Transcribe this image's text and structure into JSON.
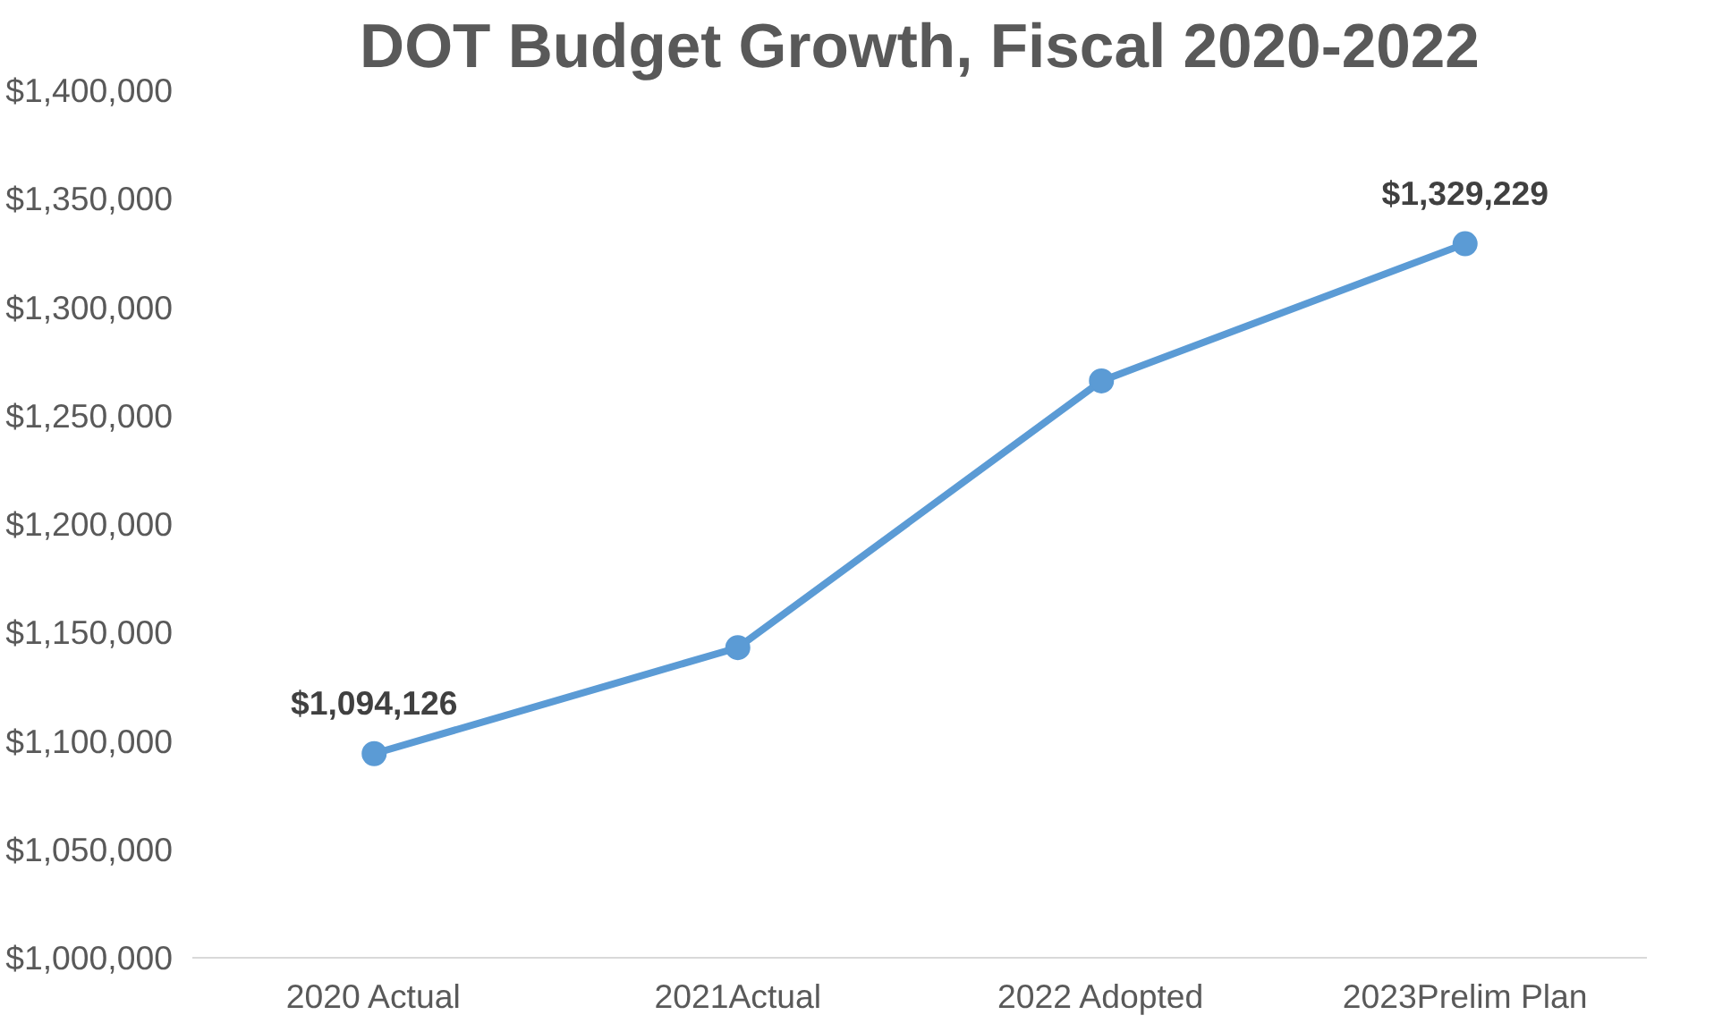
{
  "chart_data": {
    "type": "line",
    "title": "DOT Budget Growth, Fiscal 2020-2022",
    "categories": [
      "2020 Actual",
      "2021Actual",
      "2022 Adopted",
      "2023Prelim Plan"
    ],
    "series": [
      {
        "color": "#5b9bd5",
        "values": [
          1094126,
          1143000,
          1266000,
          1329229
        ],
        "value_labels": [
          "$1,094,126",
          null,
          null,
          "$1,329,229"
        ]
      }
    ],
    "ylim": [
      1000000,
      1400000
    ],
    "yticks": [
      {
        "value": 1000000,
        "label": "$1,000,000"
      },
      {
        "value": 1050000,
        "label": "$1,050,000"
      },
      {
        "value": 1100000,
        "label": "$1,100,000"
      },
      {
        "value": 1150000,
        "label": "$1,150,000"
      },
      {
        "value": 1200000,
        "label": "$1,200,000"
      },
      {
        "value": 1250000,
        "label": "$1,250,000"
      },
      {
        "value": 1300000,
        "label": "$1,300,000"
      },
      {
        "value": 1350000,
        "label": "$1,350,000"
      },
      {
        "value": 1400000,
        "label": "$1,400,000"
      }
    ],
    "grid": false,
    "marker": "circle",
    "line_style": "solid"
  }
}
